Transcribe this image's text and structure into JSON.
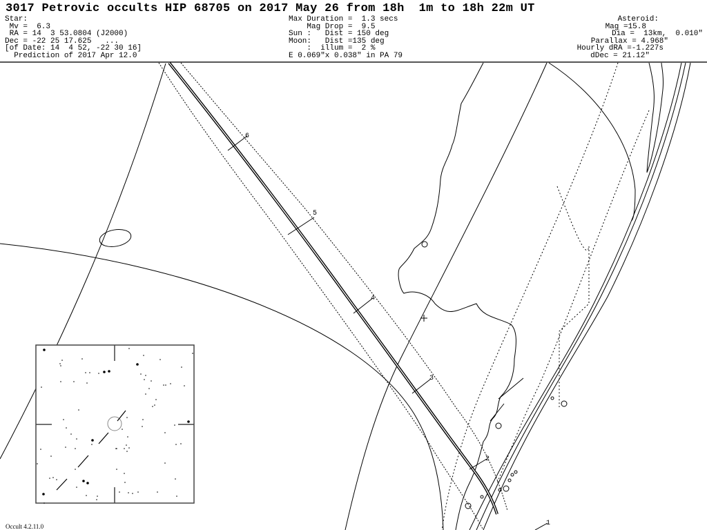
{
  "title": "3017 Petrovic occults HIP 68705 on 2017 May 26 from 18h  1m to 18h 22m UT",
  "star": {
    "heading": "Star:",
    "mv": " Mv =  6.3",
    "ra": " RA = 14  3 53.0804 (J2000)",
    "dec": "Dec = -22 25 17.625   ...",
    "of_date": "[of Date: 14  4 52, -22 30 16]",
    "prediction": "  Prediction of 2017 Apr 12.0"
  },
  "event": {
    "max_duration": "Max Duration =  1.3 secs",
    "mag_drop": "    Mag Drop =  9.5",
    "sun": "Sun :   Dist = 150 deg",
    "moon": "Moon:   Dist =135 deg",
    "illum": "    :  illum =  2 %",
    "error_ellipse": "E 0.069\"x 0.038\" in PA 79"
  },
  "asteroid": {
    "heading": "Asteroid:",
    "mag": "Mag =15.8",
    "dia": "Dia =  13km,  0.010\"",
    "parallax": "Parallax = 4.968\"",
    "hourly_dra": "Hourly dRA =-1.227s",
    "ddec": "dDec = 21.12\""
  },
  "path_time_marks": [
    "6",
    "5",
    "4",
    "3",
    "2",
    "1"
  ],
  "footer": "Occult 4.2.11.0"
}
